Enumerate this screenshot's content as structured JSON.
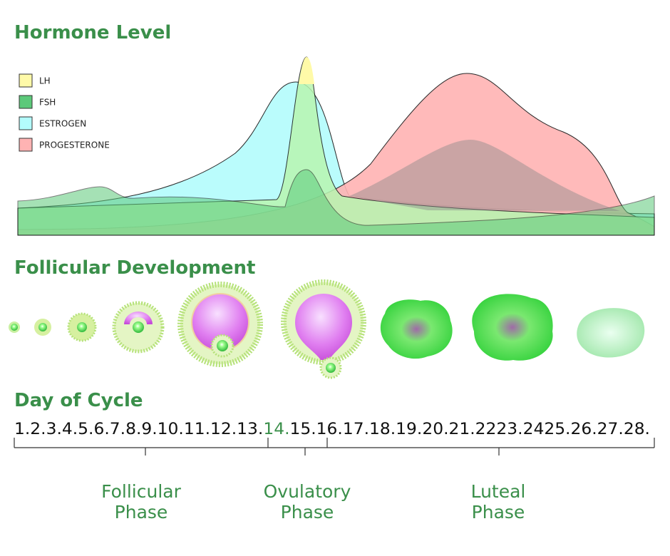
{
  "sections": {
    "hormone_title": "Hormone Level",
    "follicle_title": "Follicular Development",
    "day_title": "Day of Cycle"
  },
  "legend": [
    {
      "label": "LH",
      "color": "#fffaa8"
    },
    {
      "label": "FSH",
      "color": "#5cc97a"
    },
    {
      "label": "ESTROGEN",
      "color": "#b3fcfc"
    },
    {
      "label": "PROGESTERONE",
      "color": "#ffb3b3"
    }
  ],
  "days": [
    "1.",
    "2.",
    "3.",
    "4.",
    "5.",
    "6.",
    "7.",
    "8.",
    "9.",
    "10.",
    "11.",
    "12.",
    "13.",
    "14.",
    "15.",
    "16.",
    "17.",
    "18.",
    "19.",
    "20.",
    "21.",
    "22",
    "23.",
    "24",
    "25.",
    "26.",
    "27.",
    "28."
  ],
  "phases": [
    {
      "lines": [
        "Follicular",
        "Phase"
      ]
    },
    {
      "lines": [
        "Ovulatory",
        "Phase"
      ]
    },
    {
      "lines": [
        "Luteal",
        "Phase"
      ]
    }
  ]
}
